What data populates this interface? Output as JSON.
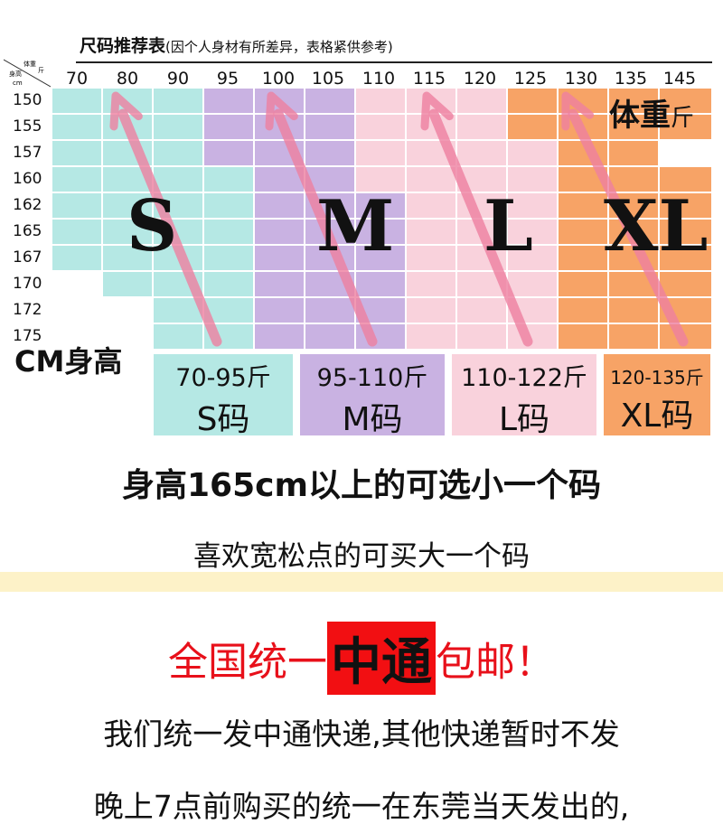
{
  "chart_data": {
    "type": "table",
    "title": "尺码推荐表",
    "note": "(因个人身材有所差异，表格紧供参考)",
    "corner": {
      "top": "体重",
      "top_unit": "斤",
      "bottom": "身高",
      "bottom_unit": "cm"
    },
    "weights": [
      "70",
      "80",
      "90",
      "95",
      "100",
      "105",
      "110",
      "115",
      "120",
      "125",
      "130",
      "135",
      "145"
    ],
    "heights": [
      "150",
      "155",
      "157",
      "160",
      "162",
      "165",
      "167",
      "170",
      "172",
      "175"
    ],
    "sizes": [
      "S",
      "M",
      "L",
      "XL"
    ],
    "colors": {
      "S": "#b5e8e4",
      "M": "#c9b2e2",
      "L": "#f9d2dc",
      "XL": "#f7a366",
      "arrow": "#ee7fa0"
    }
  },
  "axis_labels": {
    "weight": "体重",
    "weight_unit": "斤",
    "height": "CM身高"
  },
  "legend": [
    {
      "range": "70-95斤",
      "name": "S码",
      "color": "#b5e8e4"
    },
    {
      "range": "95-110斤",
      "name": "M码",
      "color": "#c9b2e2"
    },
    {
      "range": "110-122斤",
      "name": "L码",
      "color": "#f9d2dc"
    },
    {
      "range": "120-135斤",
      "name": "XL码",
      "color": "#f7a366"
    }
  ],
  "tips": {
    "tip1": "身高165cm以上的可选小一个码",
    "tip2": "喜欢宽松点的可买大一个码"
  },
  "shipping": {
    "prefix": "全国统一",
    "highlight": "中通",
    "suffix": "包邮！",
    "line1": "我们统一发中通快递,其他快递暂时不发",
    "line2": "晚上7点前购买的统一在东莞当天发出的,"
  }
}
